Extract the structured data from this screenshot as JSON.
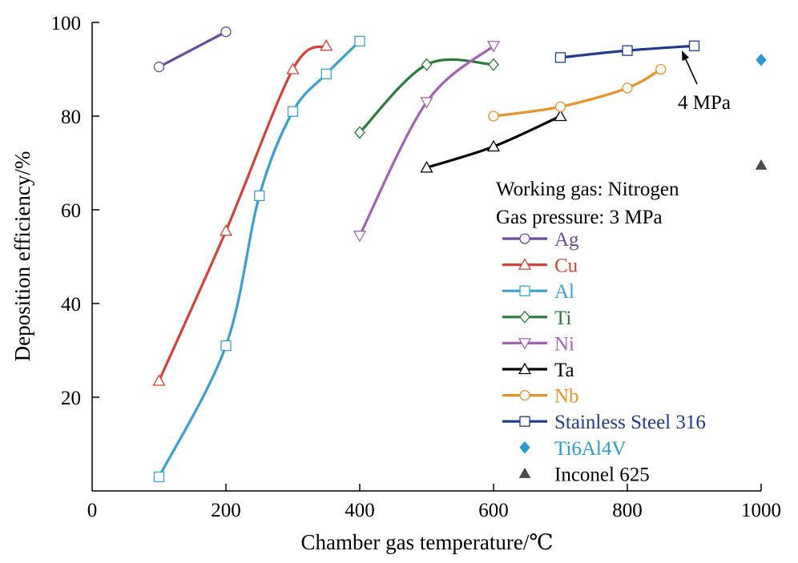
{
  "chart_data": {
    "type": "line",
    "title": "",
    "xlabel": "Chamber gas temperature/℃",
    "ylabel": "Deposition efficiency/%",
    "xlim": [
      0,
      1000
    ],
    "ylim": [
      0,
      100
    ],
    "xticks": [
      0,
      200,
      400,
      600,
      800,
      1000
    ],
    "yticks": [
      20,
      40,
      60,
      80,
      100
    ],
    "grid": false,
    "legend_position": "right",
    "notes": [
      "Working gas: Nitrogen",
      "Gas pressure: 3 MPa"
    ],
    "annotations": [
      {
        "text": "4 MPa",
        "x": 880,
        "y": 95
      }
    ],
    "series": [
      {
        "name": "Ag",
        "color": "#6a4c9c",
        "marker": "circle",
        "x": [
          100,
          200
        ],
        "y": [
          90.5,
          98
        ]
      },
      {
        "name": "Cu",
        "color": "#d4423a",
        "marker": "triangle-up",
        "x": [
          100,
          200,
          300,
          350
        ],
        "y": [
          23.5,
          55.5,
          90,
          95
        ]
      },
      {
        "name": "Al",
        "color": "#3aa0d0",
        "marker": "square",
        "x": [
          100,
          200,
          250,
          300,
          350,
          400
        ],
        "y": [
          3,
          31,
          63,
          81,
          89,
          96
        ]
      },
      {
        "name": "Ti",
        "color": "#2a7a3a",
        "marker": "diamond",
        "x": [
          400,
          500,
          600
        ],
        "y": [
          76.5,
          91,
          91
        ]
      },
      {
        "name": "Ni",
        "color": "#a064b0",
        "marker": "triangle-down",
        "x": [
          400,
          500,
          600
        ],
        "y": [
          54.5,
          83,
          95
        ]
      },
      {
        "name": "Ta",
        "color": "#000000",
        "marker": "triangle-up",
        "x": [
          500,
          600,
          700
        ],
        "y": [
          69,
          73.5,
          80
        ]
      },
      {
        "name": "Nb",
        "color": "#e8922a",
        "marker": "circle",
        "x": [
          600,
          700,
          800,
          850
        ],
        "y": [
          80,
          82,
          86,
          90
        ]
      },
      {
        "name": "Stainless Steel 316",
        "color": "#1f3a8f",
        "marker": "square",
        "x": [
          700,
          800,
          900
        ],
        "y": [
          92.5,
          94,
          95
        ]
      },
      {
        "name": "Ti6Al4V",
        "color": "#2a9ad0",
        "marker": "diamond-filled",
        "x": [
          1000
        ],
        "y": [
          92
        ]
      },
      {
        "name": "Inconel 625",
        "color": "#4a4a4a",
        "marker": "triangle-filled",
        "x": [
          1000
        ],
        "y": [
          69.5
        ]
      }
    ]
  }
}
